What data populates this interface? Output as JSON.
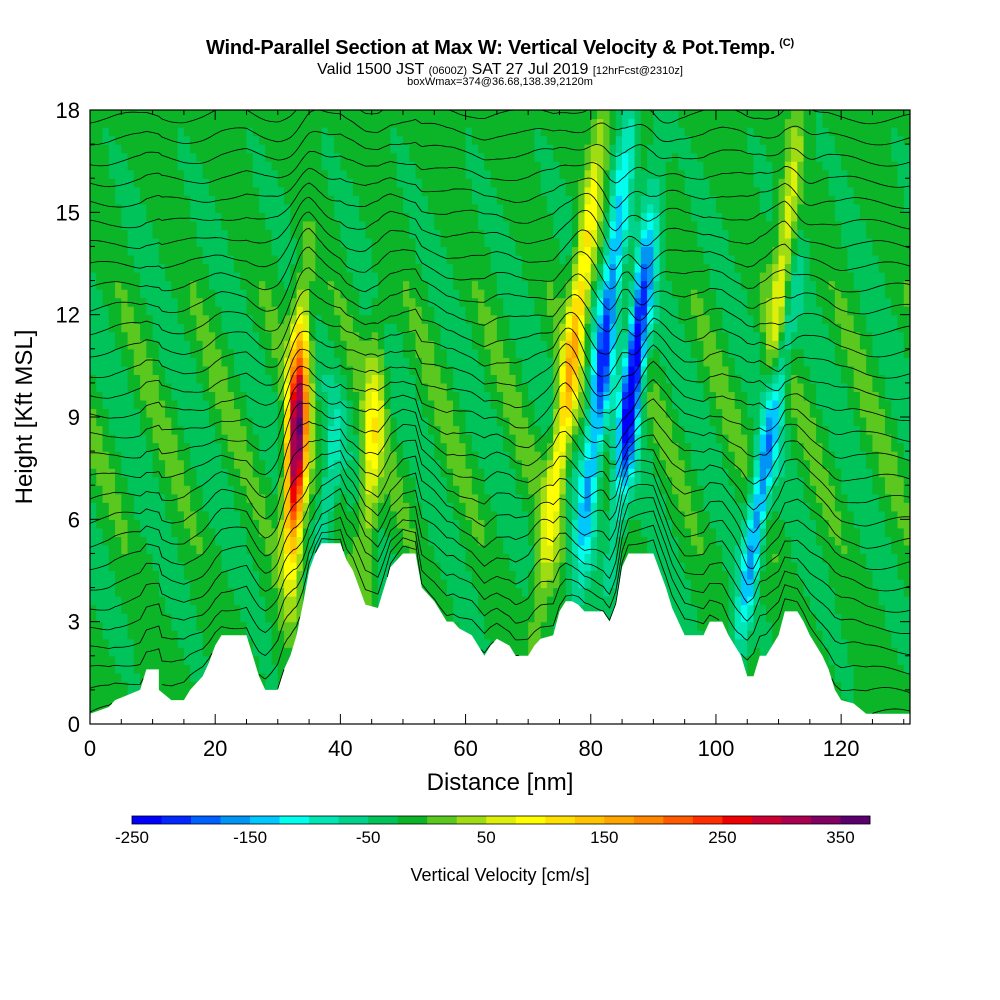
{
  "title": {
    "main": "Wind-Parallel Section at Max W: Vertical Velocity & Pot.Temp.",
    "copyright": "(C)",
    "valid_prefix": "Valid 1500 JST",
    "valid_utc": "(0600Z)",
    "valid_date": "SAT 27 Jul 2019",
    "forecast": "[12hrFcst@2310z]",
    "box_info": "boxWmax=374@36.68,138.39,2120m"
  },
  "chart_data": {
    "type": "heatmap",
    "xlabel": "Distance [nm]",
    "ylabel": "Height [Kft MSL]",
    "xlim": [
      0,
      131
    ],
    "ylim": [
      0,
      18
    ],
    "x_ticks": [
      0,
      20,
      40,
      60,
      80,
      100,
      120
    ],
    "y_ticks": [
      0,
      3,
      6,
      9,
      12,
      15,
      18
    ],
    "colorbar": {
      "title": "Vertical Velocity [cm/s]",
      "min": -250,
      "max": 375,
      "tick_values": [
        -250,
        -150,
        -50,
        50,
        150,
        250,
        350
      ],
      "colors": [
        "#0000ff",
        "#0028ff",
        "#0060ff",
        "#0095f5",
        "#00c8ff",
        "#00ffee",
        "#00e6b4",
        "#00d28c",
        "#00c35a",
        "#0cb428",
        "#5ac81e",
        "#a0dc14",
        "#dcf00a",
        "#ffff00",
        "#ffe100",
        "#ffc300",
        "#ffa500",
        "#ff8700",
        "#ff5a00",
        "#ff2d00",
        "#f00000",
        "#cd0032",
        "#aa0050",
        "#820064",
        "#5a006e"
      ]
    },
    "features": [
      {
        "type": "updraft",
        "x": 33,
        "z_bottom": 4.5,
        "z_top": 12,
        "peak_cm_s": 374,
        "lean_nm_per_kft": 0.22
      },
      {
        "type": "downdraft",
        "x": 38,
        "z_bottom": 4.0,
        "z_top": 9.5,
        "peak_cm_s": -70,
        "lean_nm_per_kft": 0.5
      },
      {
        "type": "updraft",
        "x": 45,
        "z_bottom": 4.0,
        "z_top": 12,
        "peak_cm_s": 100,
        "lean_nm_per_kft": 0.3
      },
      {
        "type": "updraft",
        "x": 77,
        "z_bottom": 3.5,
        "z_top": 18,
        "peak_cm_s": 160,
        "lean_nm_per_kft": 0.7
      },
      {
        "type": "downdraft",
        "x": 82,
        "z_bottom": 3.5,
        "z_top": 18,
        "peak_cm_s": -180,
        "lean_nm_per_kft": 0.6
      },
      {
        "type": "downdraft",
        "x": 87,
        "z_bottom": 6.0,
        "z_top": 15,
        "peak_cm_s": -250,
        "lean_nm_per_kft": 0.6
      },
      {
        "type": "downdraft",
        "x": 108,
        "z_bottom": 2.5,
        "z_top": 13,
        "peak_cm_s": -230,
        "lean_nm_per_kft": 0.75
      },
      {
        "type": "updraft",
        "x": 110,
        "z_bottom": 5.0,
        "z_top": 18,
        "peak_cm_s": 130,
        "lean_nm_per_kft": 0.5
      }
    ],
    "terrain_kft": [
      [
        0,
        0.3
      ],
      [
        3,
        0.5
      ],
      [
        4,
        0.7
      ],
      [
        8,
        1.0
      ],
      [
        9,
        1.6
      ],
      [
        11,
        1.6
      ],
      [
        11,
        1.0
      ],
      [
        13,
        0.7
      ],
      [
        15,
        0.7
      ],
      [
        16,
        1.0
      ],
      [
        18,
        1.4
      ],
      [
        19,
        1.8
      ],
      [
        20,
        2.3
      ],
      [
        21,
        2.6
      ],
      [
        25,
        2.6
      ],
      [
        26,
        2.0
      ],
      [
        27,
        1.4
      ],
      [
        28,
        1.0
      ],
      [
        30,
        1.0
      ],
      [
        31,
        1.6
      ],
      [
        32,
        2.0
      ],
      [
        33,
        2.6
      ],
      [
        34,
        3.5
      ],
      [
        35,
        4.5
      ],
      [
        36,
        5.0
      ],
      [
        37,
        5.3
      ],
      [
        40,
        5.3
      ],
      [
        41,
        4.8
      ],
      [
        42,
        4.5
      ],
      [
        43,
        4.0
      ],
      [
        44,
        3.5
      ],
      [
        46,
        3.4
      ],
      [
        47,
        4.0
      ],
      [
        48,
        4.6
      ],
      [
        50,
        5.0
      ],
      [
        52,
        5.0
      ],
      [
        53,
        4.0
      ],
      [
        55,
        3.6
      ],
      [
        56,
        3.3
      ],
      [
        57,
        3.0
      ],
      [
        58,
        3.0
      ],
      [
        59,
        2.8
      ],
      [
        60,
        2.7
      ],
      [
        61,
        2.6
      ],
      [
        62,
        2.3
      ],
      [
        63,
        2.0
      ],
      [
        64,
        2.3
      ],
      [
        65,
        2.5
      ],
      [
        67,
        2.3
      ],
      [
        68,
        2.0
      ],
      [
        70,
        2.0
      ],
      [
        71,
        2.3
      ],
      [
        72,
        2.5
      ],
      [
        74,
        2.6
      ],
      [
        75,
        3.3
      ],
      [
        76,
        3.6
      ],
      [
        77,
        3.6
      ],
      [
        78,
        3.5
      ],
      [
        79,
        3.3
      ],
      [
        82,
        3.3
      ],
      [
        83,
        3.0
      ],
      [
        84,
        3.5
      ],
      [
        85,
        4.6
      ],
      [
        86,
        5.0
      ],
      [
        90,
        5.0
      ],
      [
        91,
        4.5
      ],
      [
        92,
        4.0
      ],
      [
        93,
        3.4
      ],
      [
        94,
        3.0
      ],
      [
        95,
        2.6
      ],
      [
        96,
        2.6
      ],
      [
        98,
        2.6
      ],
      [
        99,
        3.0
      ],
      [
        101,
        3.0
      ],
      [
        102,
        2.6
      ],
      [
        103,
        2.3
      ],
      [
        104,
        2.0
      ],
      [
        105,
        1.4
      ],
      [
        106,
        1.4
      ],
      [
        107,
        2.0
      ],
      [
        108,
        2.0
      ],
      [
        109,
        2.3
      ],
      [
        110,
        2.6
      ],
      [
        111,
        3.3
      ],
      [
        113,
        3.3
      ],
      [
        114,
        3.0
      ],
      [
        115,
        2.6
      ],
      [
        116,
        2.3
      ],
      [
        117,
        2.0
      ],
      [
        118,
        1.6
      ],
      [
        119,
        1.0
      ],
      [
        120,
        0.7
      ],
      [
        122,
        0.6
      ],
      [
        124,
        0.3
      ],
      [
        131,
        0.3
      ]
    ]
  }
}
